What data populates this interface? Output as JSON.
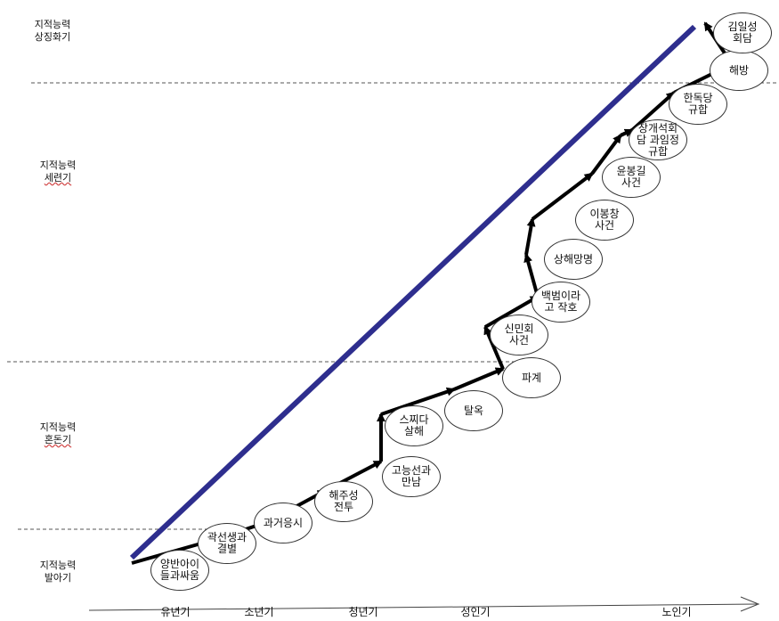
{
  "stage_labels": [
    {
      "line1": "지적능력",
      "line2": "상징화기"
    },
    {
      "line1": "지적능력",
      "line2": "세련기"
    },
    {
      "line1": "지적능력",
      "line2": "혼돈기"
    },
    {
      "line1": "지적능력",
      "line2": "발아기"
    }
  ],
  "age_axis": [
    "유년기",
    "소년기",
    "청년기",
    "성인기",
    "노인기"
  ],
  "events": [
    [
      "양반아이",
      "들과싸움"
    ],
    [
      "곽선생과",
      "결별"
    ],
    [
      "과거응시"
    ],
    [
      "해주성",
      "전투"
    ],
    [
      "고능선과",
      "만남"
    ],
    [
      "스찌다",
      "살해"
    ],
    [
      "탈옥"
    ],
    [
      "파계"
    ],
    [
      "신민회",
      "사건"
    ],
    [
      "백범이라",
      "고 작호"
    ],
    [
      "상해망명"
    ],
    [
      "이봉창",
      "사건"
    ],
    [
      "윤봉길",
      "사건"
    ],
    [
      "장개석회",
      "담 과임정",
      "규합"
    ],
    [
      "한독당",
      "규합"
    ],
    [
      "해방"
    ],
    [
      "김일성",
      "회담"
    ]
  ],
  "colors": {
    "trend_line": "#2e2e8e",
    "arrow": "#000000",
    "divider": "#555555"
  }
}
